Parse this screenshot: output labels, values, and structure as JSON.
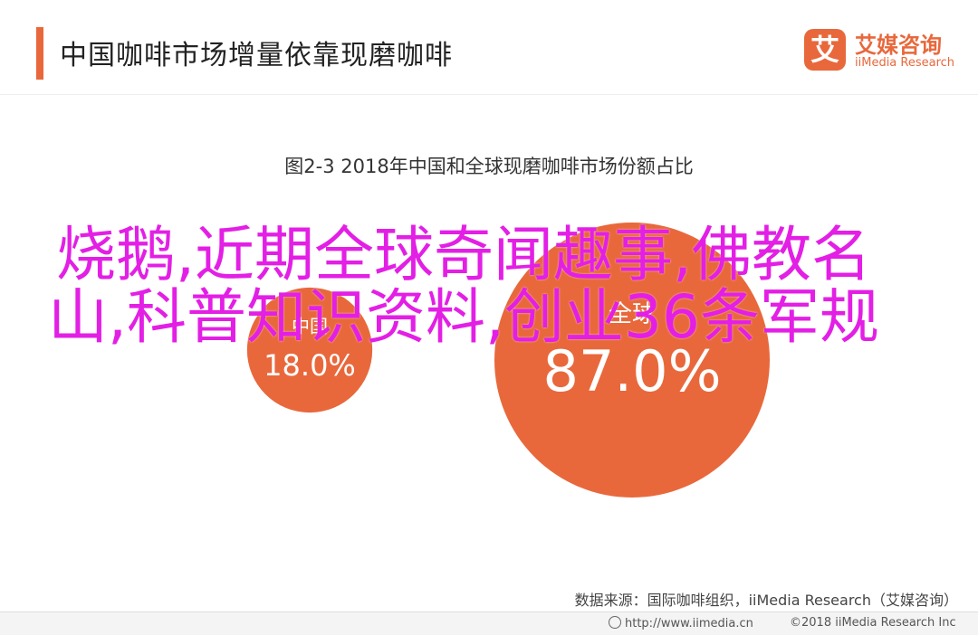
{
  "header": {
    "title": "中国咖啡市场增量依靠现磨咖啡",
    "accent_color": "#e8683c"
  },
  "logo": {
    "icon": "ai-logo-icon",
    "mark": "艾",
    "name_cn": "艾媒咨询",
    "name_en": "iiMedia Research"
  },
  "chart_data": {
    "type": "bubble",
    "title": "图2-3 2018年中国和全球现磨咖啡市场份额占比",
    "items": [
      {
        "label": "中国",
        "value": 18.0,
        "value_label": "18.0%",
        "color": "#e8683c"
      },
      {
        "label": "全球",
        "value": 87.0,
        "value_label": "87.0%",
        "color": "#e8683c"
      }
    ]
  },
  "overlay_text": "烧鹅,近期全球奇闻趣事,佛教名山,科普知识资料,创业36条军规",
  "overlay_color": "#e31fe5",
  "footer": {
    "source": "数据来源：国际咖啡组织，iiMedia Research（艾媒咨询）",
    "url": "http://www.iimedia.cn",
    "url_icon": "globe-icon",
    "copyright": "©2018  iiMedia Research Inc"
  }
}
